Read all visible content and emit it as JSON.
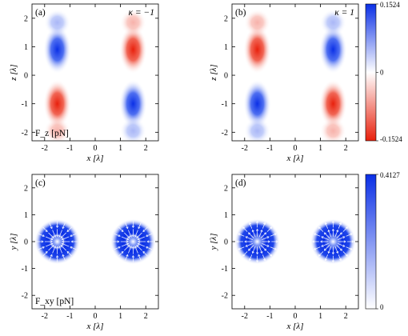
{
  "chart_data": [
    {
      "type": "heatmap",
      "panel_label": "(a)",
      "annotation": "κ = −1",
      "quantity_label": "F_z [pN]",
      "quantity_symbol": "F",
      "quantity_sub": "z",
      "quantity_unit": "[pN]",
      "xlabel": "x [λ]",
      "xlabel_var": "x",
      "xlabel_unit": "[λ]",
      "ylabel": "z [λ]",
      "ylabel_var": "z",
      "ylabel_unit": "[λ]",
      "xlim": [
        -2.5,
        2.5
      ],
      "ylim": [
        -2.3,
        2.5
      ],
      "xticks": [
        "-2",
        "-1",
        "0",
        "1",
        "2"
      ],
      "yticks": [
        "-2",
        "-1",
        "0",
        "1",
        "2"
      ],
      "lobes": [
        {
          "x": -1.5,
          "z": 0.9,
          "sign": 1
        },
        {
          "x": -1.5,
          "z": -1.0,
          "sign": -1
        },
        {
          "x": 1.5,
          "z": 0.9,
          "sign": -1
        },
        {
          "x": 1.5,
          "z": -1.0,
          "sign": 1
        }
      ]
    },
    {
      "type": "heatmap",
      "panel_label": "(b)",
      "annotation": "κ = 1",
      "xlabel": "x [λ]",
      "xlabel_var": "x",
      "xlabel_unit": "[λ]",
      "ylabel": "z [λ]",
      "ylabel_var": "z",
      "ylabel_unit": "[λ]",
      "xlim": [
        -2.5,
        2.5
      ],
      "ylim": [
        -2.3,
        2.5
      ],
      "xticks": [
        "-2",
        "-1",
        "0",
        "1",
        "2"
      ],
      "yticks": [
        "-2",
        "-1",
        "0",
        "1",
        "2"
      ],
      "lobes": [
        {
          "x": -1.5,
          "z": 0.9,
          "sign": -1
        },
        {
          "x": -1.5,
          "z": -1.0,
          "sign": 1
        },
        {
          "x": 1.5,
          "z": 0.9,
          "sign": 1
        },
        {
          "x": 1.5,
          "z": -1.0,
          "sign": -1
        }
      ],
      "colorbar": {
        "max": 0.1524,
        "mid": 0,
        "min": -0.1524,
        "labels": [
          "0.1524",
          "0",
          "-0.1524"
        ],
        "colors": [
          "#0a2fe6",
          "#ffffff",
          "#e8200c"
        ]
      }
    },
    {
      "type": "heatmap",
      "panel_label": "(c)",
      "quantity_label": "F_xy [pN]",
      "quantity_symbol": "F",
      "quantity_sub": "xy",
      "quantity_unit": "[pN]",
      "xlabel": "x [λ]",
      "xlabel_var": "x",
      "xlabel_unit": "[λ]",
      "ylabel": "y [λ]",
      "ylabel_var": "y",
      "ylabel_unit": "[λ]",
      "xlim": [
        -2.5,
        2.5
      ],
      "ylim": [
        -2.5,
        2.5
      ],
      "xticks": [
        "-2",
        "-1",
        "0",
        "1",
        "2"
      ],
      "yticks": [
        "-2",
        "-1",
        "0",
        "1",
        "2"
      ],
      "spots": [
        {
          "x": -1.5,
          "y": 0.0
        },
        {
          "x": 1.5,
          "y": 0.0
        }
      ],
      "arrows": "radial-inward"
    },
    {
      "type": "heatmap",
      "panel_label": "(d)",
      "xlabel": "x [λ]",
      "xlabel_var": "x",
      "xlabel_unit": "[λ]",
      "ylabel": "y [λ]",
      "ylabel_var": "y",
      "ylabel_unit": "[λ]",
      "xlim": [
        -2.5,
        2.5
      ],
      "ylim": [
        -2.5,
        2.5
      ],
      "xticks": [
        "-2",
        "-1",
        "0",
        "1",
        "2"
      ],
      "yticks": [
        "-2",
        "-1",
        "0",
        "1",
        "2"
      ],
      "spots": [
        {
          "x": -1.5,
          "y": 0.0
        },
        {
          "x": 1.5,
          "y": 0.0
        }
      ],
      "arrows": "radial-outward",
      "colorbar": {
        "max": 0.4127,
        "min": 0,
        "labels": [
          "0.4127",
          "0"
        ],
        "colors": [
          "#0a2fe6",
          "#ffffff"
        ]
      }
    }
  ]
}
